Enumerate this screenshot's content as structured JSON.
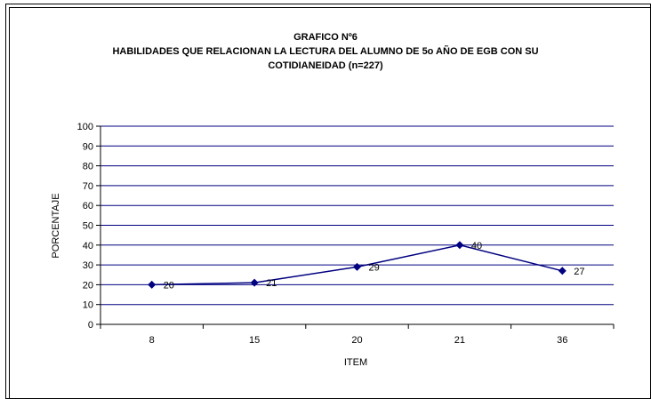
{
  "chart_data": {
    "type": "line",
    "title": "GRAFICO Nº6",
    "subtitle_lines": [
      "HABILIDADES QUE RELACIONAN LA LECTURA DEL ALUMNO DE 5o AÑO DE EGB CON SU",
      "COTIDIANEIDAD (n=227)"
    ],
    "categories": [
      "8",
      "15",
      "20",
      "21",
      "36"
    ],
    "values": [
      20,
      21,
      29,
      40,
      27
    ],
    "data_labels": [
      "20",
      "21",
      "29",
      "40",
      "27"
    ],
    "xlabel": "ITEM",
    "ylabel": "PORCENTAJE",
    "ylim": [
      0,
      100
    ],
    "yticks": [
      "0",
      "10",
      "20",
      "30",
      "40",
      "50",
      "60",
      "70",
      "80",
      "90",
      "100"
    ],
    "grid": true,
    "legend": "none",
    "colors": {
      "series": "#000080",
      "grid": "#000080",
      "axis": "#000000"
    }
  }
}
